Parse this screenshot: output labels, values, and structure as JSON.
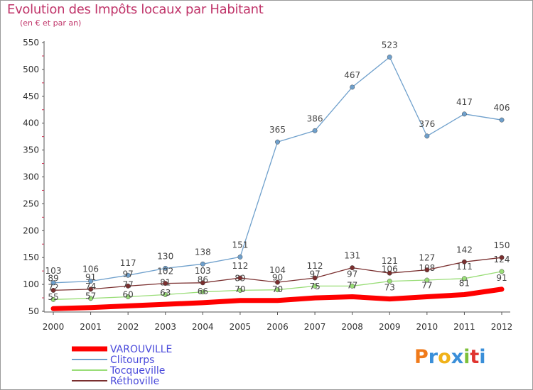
{
  "title": "Evolution des Impôts locaux par Habitant",
  "subtitle": "(en € et par an)",
  "logo": {
    "text": "Proxiti"
  },
  "chart_data": {
    "type": "line",
    "title": "Evolution des Impôts locaux par Habitant",
    "subtitle": "(en € et par an)",
    "xlabel": "",
    "ylabel": "",
    "x": [
      2000,
      2001,
      2002,
      2003,
      2004,
      2005,
      2006,
      2007,
      2008,
      2009,
      2010,
      2011,
      2012
    ],
    "ylim": [
      50,
      550
    ],
    "yticks": [
      50,
      100,
      150,
      200,
      250,
      300,
      350,
      400,
      450,
      500,
      550
    ],
    "grid": false,
    "legend_position": "bottom-left",
    "series": [
      {
        "name": "VAROUVILLE",
        "color": "#ff0000",
        "values": [
          55,
          57,
          60,
          63,
          66,
          70,
          70,
          75,
          77,
          73,
          77,
          81,
          91
        ]
      },
      {
        "name": "Clitourps",
        "color": "#6fa0cc",
        "values": [
          103,
          106,
          117,
          130,
          138,
          151,
          365,
          386,
          467,
          523,
          376,
          417,
          406
        ]
      },
      {
        "name": "Tocqueville",
        "color": "#99dd77",
        "values": [
          72,
          74,
          77,
          81,
          86,
          89,
          90,
          97,
          97,
          106,
          108,
          111,
          124
        ]
      },
      {
        "name": "Réthoville",
        "color": "#7a2f2f",
        "values": [
          89,
          91,
          97,
          102,
          103,
          112,
          104,
          112,
          131,
          121,
          127,
          142,
          150
        ]
      }
    ]
  }
}
